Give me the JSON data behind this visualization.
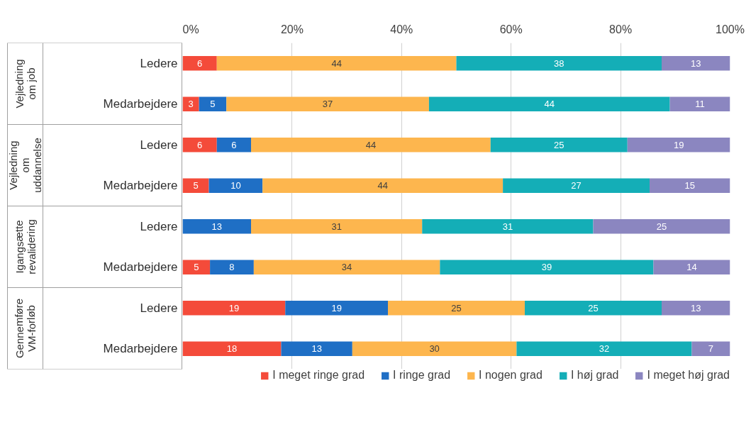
{
  "chart_data": {
    "type": "bar",
    "orientation": "horizontal",
    "stacked": true,
    "categories": [
      "Ledere",
      "Medarbejdere",
      "Ledere",
      "Medarbejdere",
      "Ledere",
      "Medarbejdere",
      "Ledere",
      "Medarbejdere"
    ],
    "annotations": [
      "Vejledning om job",
      "Vejledning om uddannelse",
      "Igangsætte revalidering",
      "Gennemføre VM-forløb"
    ],
    "series": [
      {
        "name": "I meget ringe grad",
        "color": "#f44b3a",
        "values": [
          6.25,
          3,
          6.25,
          4.8,
          null,
          5,
          18.75,
          18
        ],
        "value_labels": [
          "6",
          "3",
          "6",
          "5",
          null,
          "5",
          "19",
          "18"
        ]
      },
      {
        "name": "I ringe grad",
        "color": "#1f6fc5",
        "values": [
          null,
          5,
          6.25,
          9.8,
          12.5,
          8,
          18.75,
          13
        ],
        "value_labels": [
          null,
          "5",
          "6",
          "10",
          "13",
          "8",
          "19",
          "13"
        ]
      },
      {
        "name": "I nogen grad",
        "color": "#fdb64e",
        "values": [
          43.75,
          37,
          43.75,
          43.9,
          31.25,
          34,
          25,
          30
        ],
        "value_labels": [
          "44",
          "37",
          "44",
          "44",
          "31",
          "34",
          "25",
          "30"
        ]
      },
      {
        "name": "I høj grad",
        "color": "#14aeb7",
        "values": [
          37.5,
          44,
          25,
          26.8,
          31.25,
          39,
          25,
          32
        ],
        "value_labels": [
          "38",
          "44",
          "25",
          "27",
          "31",
          "39",
          "25",
          "32"
        ]
      },
      {
        "name": "I meget høj grad",
        "color": "#8b86c0",
        "values": [
          12.5,
          11,
          18.75,
          14.7,
          25,
          14,
          12.5,
          7
        ],
        "value_labels": [
          "13",
          "11",
          "19",
          "15",
          "25",
          "14",
          "13",
          "7"
        ]
      }
    ],
    "xlim": [
      0,
      100
    ],
    "xticks": [
      {
        "value": 0,
        "label": "0%"
      },
      {
        "value": 20,
        "label": "20%"
      },
      {
        "value": 40,
        "label": "40%"
      },
      {
        "value": 60,
        "label": "60%"
      },
      {
        "value": 80,
        "label": "80%"
      },
      {
        "value": 100,
        "label": "100%"
      }
    ],
    "grid": "x",
    "legend": "bottom"
  }
}
